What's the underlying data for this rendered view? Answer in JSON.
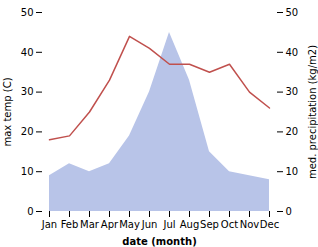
{
  "chart_data": {
    "type": "line",
    "xlabel": "date (month)",
    "ylabel": "max temp (C)",
    "y2label": "med. precipitation (kg/m2)",
    "categories": [
      "Jan",
      "Feb",
      "Mar",
      "Apr",
      "May",
      "Jun",
      "Jul",
      "Aug",
      "Sep",
      "Oct",
      "Nov",
      "Dec"
    ],
    "series": [
      {
        "type": "area",
        "axis": "y2",
        "color": "#b8c4e8",
        "values": [
          9,
          12,
          10,
          12,
          19,
          30,
          45,
          33,
          15,
          10,
          9,
          8
        ]
      },
      {
        "type": "line",
        "color": "#c0504d",
        "values": [
          18,
          19,
          25,
          33,
          44,
          41,
          37,
          37,
          35,
          37,
          30,
          26
        ]
      }
    ],
    "ylim": [
      0,
      50
    ],
    "yticks": [
      0,
      10,
      20,
      30,
      40,
      50
    ],
    "y2lim": [
      0,
      50
    ],
    "y2ticks": [
      0,
      10,
      20,
      30,
      40,
      50
    ],
    "grid": false
  }
}
